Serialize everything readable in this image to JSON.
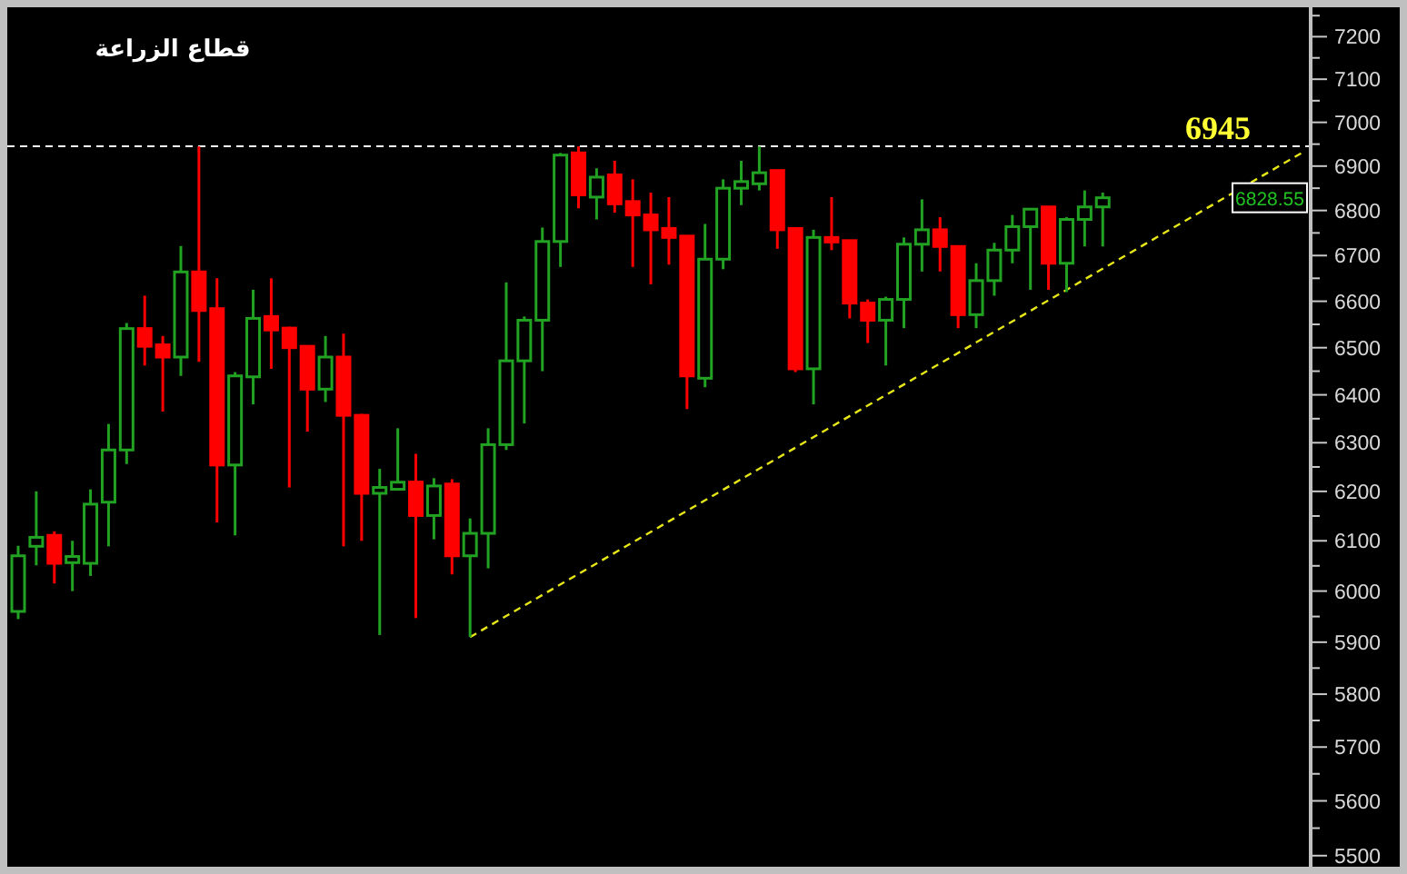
{
  "chart_data": {
    "type": "candlestick",
    "title": "قطاع الزراعة",
    "categories": [
      null,
      null,
      null,
      null,
      null,
      null,
      null,
      null,
      null,
      null,
      null,
      null,
      null,
      null,
      null,
      null,
      null,
      null,
      null,
      null,
      null,
      null,
      null,
      null,
      null,
      null,
      null,
      null,
      null,
      null,
      null,
      null,
      null,
      null,
      null,
      null,
      null,
      null,
      null,
      null,
      null,
      null,
      null,
      null,
      null,
      null,
      null,
      null,
      null,
      null,
      null,
      null,
      null,
      null,
      null,
      null,
      null,
      null,
      null,
      null,
      null,
      null,
      null,
      null,
      null,
      null,
      null,
      null,
      null,
      null,
      null,
      null
    ],
    "ohlc": [
      [
        5960,
        6090,
        5945,
        6070
      ],
      [
        6089,
        6200,
        6051,
        6107
      ],
      [
        6111,
        6119,
        6015,
        6055
      ],
      [
        6060,
        6100,
        6000,
        6065
      ],
      [
        6055,
        6204,
        6030,
        6174
      ],
      [
        6178,
        6339,
        6089,
        6285
      ],
      [
        6285,
        6553,
        6256,
        6541
      ],
      [
        6541,
        6612,
        6462,
        6503
      ],
      [
        6506,
        6525,
        6365,
        6480
      ],
      [
        6480,
        6721,
        6440,
        6664
      ],
      [
        6664,
        6945,
        6470,
        6580
      ],
      [
        6584,
        6650,
        6137,
        6254
      ],
      [
        6254,
        6448,
        6111,
        6440
      ],
      [
        6438,
        6625,
        6380,
        6563
      ],
      [
        6567,
        6650,
        6455,
        6538
      ],
      [
        6542,
        6545,
        6208,
        6500
      ],
      [
        6503,
        6503,
        6323,
        6412
      ],
      [
        6412,
        6525,
        6385,
        6480
      ],
      [
        6480,
        6530,
        6089,
        6357
      ],
      [
        6357,
        6360,
        6100,
        6196
      ],
      [
        6196,
        6246,
        5914,
        6208
      ],
      [
        6208,
        6330,
        6204,
        6215
      ],
      [
        6219,
        6277,
        5947,
        6151
      ],
      [
        6151,
        6227,
        6103,
        6211
      ],
      [
        6215,
        6225,
        6033,
        6070
      ],
      [
        6070,
        6145,
        5910,
        6115
      ],
      [
        6115,
        6330,
        6045,
        6296
      ],
      [
        6296,
        6641,
        6285,
        6472
      ],
      [
        6472,
        6567,
        6340,
        6559
      ],
      [
        6559,
        6762,
        6450,
        6731
      ],
      [
        6731,
        6930,
        6675,
        6925
      ],
      [
        6930,
        6945,
        6805,
        6835
      ],
      [
        6830,
        6895,
        6780,
        6875
      ],
      [
        6880,
        6912,
        6795,
        6815
      ],
      [
        6820,
        6870,
        6675,
        6790
      ],
      [
        6790,
        6840,
        6637,
        6757
      ],
      [
        6760,
        6830,
        6680,
        6740
      ],
      [
        6743,
        6745,
        6370,
        6440
      ],
      [
        6435,
        6770,
        6416,
        6692
      ],
      [
        6692,
        6870,
        6670,
        6850
      ],
      [
        6850,
        6912,
        6812,
        6865
      ],
      [
        6860,
        6945,
        6845,
        6885
      ],
      [
        6890,
        6890,
        6715,
        6757
      ],
      [
        6760,
        6760,
        6448,
        6455
      ],
      [
        6455,
        6757,
        6380,
        6740
      ],
      [
        6740,
        6830,
        6712,
        6730
      ],
      [
        6733,
        6733,
        6563,
        6596
      ],
      [
        6596,
        6604,
        6510,
        6559
      ],
      [
        6559,
        6610,
        6462,
        6604
      ],
      [
        6604,
        6740,
        6542,
        6725
      ],
      [
        6725,
        6825,
        6665,
        6757
      ],
      [
        6757,
        6785,
        6665,
        6720
      ],
      [
        6720,
        6720,
        6542,
        6571
      ],
      [
        6571,
        6683,
        6542,
        6645
      ],
      [
        6645,
        6728,
        6612,
        6712
      ],
      [
        6712,
        6790,
        6683,
        6764
      ],
      [
        6764,
        6805,
        6625,
        6803
      ],
      [
        6808,
        6808,
        6625,
        6683
      ],
      [
        6683,
        6785,
        6620,
        6780
      ],
      [
        6780,
        6845,
        6720,
        6808
      ],
      [
        6808,
        6840,
        6720,
        6828.55
      ],
      null,
      null,
      null,
      null,
      null,
      null,
      null,
      null,
      null,
      null,
      null
    ],
    "series": [
      {
        "type": "line",
        "color": "#e6e619",
        "line_style": "dashed",
        "values": [
          null,
          null,
          null,
          null,
          null,
          null,
          null,
          null,
          null,
          null,
          null,
          null,
          null,
          null,
          null,
          null,
          null,
          null,
          null,
          null,
          null,
          null,
          null,
          null,
          null,
          5910,
          null,
          null,
          null,
          null,
          null,
          null,
          null,
          null,
          null,
          null,
          null,
          null,
          null,
          null,
          null,
          null,
          null,
          null,
          null,
          null,
          null,
          null,
          null,
          null,
          null,
          null,
          null,
          null,
          null,
          null,
          null,
          null,
          null,
          null,
          null,
          null,
          null,
          null,
          null,
          null,
          null,
          null,
          null,
          null,
          null,
          6930
        ]
      }
    ],
    "ref_lines": [
      {
        "axis": "y",
        "value": 6945,
        "label": "6945",
        "color": "#ffffff",
        "line_style": "dashed"
      }
    ],
    "annotations": [
      {
        "text": "6828.55",
        "y": 6828.55
      }
    ],
    "log": true,
    "ylim": [
      5480,
      7270
    ],
    "yticks": [
      5500,
      {
        "value": 5550,
        "label": null
      },
      5600,
      {
        "value": 5650,
        "label": null
      },
      5700,
      {
        "value": 5750,
        "label": null
      },
      5800,
      {
        "value": 5850,
        "label": null
      },
      5900,
      {
        "value": 5950,
        "label": null
      },
      6000,
      {
        "value": 6050,
        "label": null
      },
      6100,
      {
        "value": 6150,
        "label": null
      },
      6200,
      {
        "value": 6250,
        "label": null
      },
      6300,
      {
        "value": 6350,
        "label": null
      },
      6400,
      {
        "value": 6450,
        "label": null
      },
      6500,
      {
        "value": 6550,
        "label": null
      },
      6600,
      {
        "value": 6650,
        "label": null
      },
      6700,
      {
        "value": 6750,
        "label": null
      },
      6800,
      {
        "value": 6850,
        "label": null
      },
      6900,
      {
        "value": 6950,
        "label": null
      },
      7000,
      {
        "value": 7050,
        "label": null
      },
      7100,
      {
        "value": 7150,
        "label": null
      },
      7200,
      {
        "value": 7250,
        "label": null
      }
    ]
  }
}
